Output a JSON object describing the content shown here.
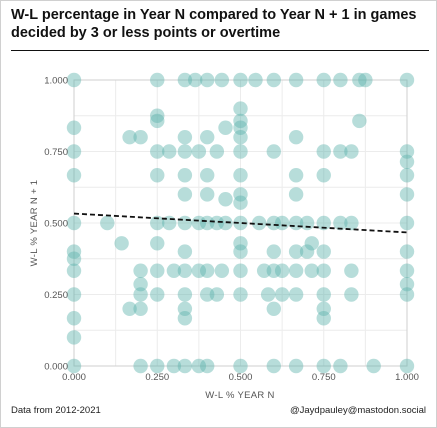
{
  "title": "W-L percentage in Year N compared to Year N + 1 in games decided by 3 or less points or overtime",
  "footer": {
    "source": "Data from 2012-2021",
    "credit": "@Jaydpauley@mastodon.social"
  },
  "chart_data": {
    "type": "scatter",
    "xlabel": "W-L % YEAR N",
    "ylabel": "W-L % YEAR N + 1",
    "xlim": [
      0,
      1
    ],
    "ylim": [
      0,
      1
    ],
    "xticks": [
      "0.000",
      "0.250",
      "0.500",
      "0.750",
      "1.000"
    ],
    "yticks": [
      "0.000",
      "0.250",
      "0.500",
      "0.750",
      "1.000"
    ],
    "grid": true,
    "point_color": "#5fb3ad",
    "trendline": {
      "x": [
        0,
        1
      ],
      "y": [
        0.533,
        0.467
      ],
      "style": "dashed",
      "color": "#111111"
    },
    "points": [
      [
        0.0,
        1.0
      ],
      [
        0.0,
        0.833
      ],
      [
        0.0,
        0.75
      ],
      [
        0.0,
        0.667
      ],
      [
        0.0,
        0.5
      ],
      [
        0.0,
        0.4
      ],
      [
        0.0,
        0.375
      ],
      [
        0.0,
        0.333
      ],
      [
        0.0,
        0.25
      ],
      [
        0.0,
        0.167
      ],
      [
        0.0,
        0.1
      ],
      [
        0.0,
        0.0
      ],
      [
        0.1,
        0.5
      ],
      [
        0.143,
        0.429
      ],
      [
        0.167,
        0.8
      ],
      [
        0.2,
        0.8
      ],
      [
        0.167,
        0.2
      ],
      [
        0.2,
        0.333
      ],
      [
        0.2,
        0.2
      ],
      [
        0.2,
        0.0
      ],
      [
        0.25,
        1.0
      ],
      [
        0.25,
        0.875
      ],
      [
        0.25,
        0.857
      ],
      [
        0.25,
        0.75
      ],
      [
        0.25,
        0.667
      ],
      [
        0.25,
        0.5
      ],
      [
        0.25,
        0.429
      ],
      [
        0.25,
        0.333
      ],
      [
        0.25,
        0.25
      ],
      [
        0.25,
        0.0
      ],
      [
        0.2,
        0.25
      ],
      [
        0.2,
        0.286
      ],
      [
        0.286,
        0.75
      ],
      [
        0.286,
        0.5
      ],
      [
        0.3,
        0.333
      ],
      [
        0.3,
        0.0
      ],
      [
        0.333,
        1.0
      ],
      [
        0.333,
        0.8
      ],
      [
        0.333,
        0.75
      ],
      [
        0.333,
        0.667
      ],
      [
        0.333,
        0.6
      ],
      [
        0.333,
        0.5
      ],
      [
        0.333,
        0.4
      ],
      [
        0.333,
        0.333
      ],
      [
        0.333,
        0.25
      ],
      [
        0.333,
        0.2
      ],
      [
        0.333,
        0.167
      ],
      [
        0.333,
        0.0
      ],
      [
        0.364,
        1.0
      ],
      [
        0.375,
        0.75
      ],
      [
        0.375,
        0.5
      ],
      [
        0.375,
        0.333
      ],
      [
        0.375,
        0.0
      ],
      [
        0.4,
        1.0
      ],
      [
        0.4,
        0.8
      ],
      [
        0.4,
        0.667
      ],
      [
        0.4,
        0.6
      ],
      [
        0.4,
        0.5
      ],
      [
        0.4,
        0.333
      ],
      [
        0.4,
        0.25
      ],
      [
        0.4,
        0.0
      ],
      [
        0.429,
        0.75
      ],
      [
        0.429,
        0.5
      ],
      [
        0.429,
        0.25
      ],
      [
        0.444,
        1.0
      ],
      [
        0.444,
        0.333
      ],
      [
        0.455,
        0.5
      ],
      [
        0.455,
        0.833
      ],
      [
        0.455,
        0.583
      ],
      [
        0.5,
        1.0
      ],
      [
        0.5,
        0.9
      ],
      [
        0.5,
        0.857
      ],
      [
        0.5,
        0.833
      ],
      [
        0.5,
        0.8
      ],
      [
        0.5,
        0.75
      ],
      [
        0.5,
        0.667
      ],
      [
        0.5,
        0.6
      ],
      [
        0.5,
        0.571
      ],
      [
        0.5,
        0.5
      ],
      [
        0.5,
        0.429
      ],
      [
        0.5,
        0.4
      ],
      [
        0.5,
        0.333
      ],
      [
        0.5,
        0.25
      ],
      [
        0.5,
        0.0
      ],
      [
        0.545,
        1.0
      ],
      [
        0.556,
        0.5
      ],
      [
        0.571,
        0.333
      ],
      [
        0.583,
        0.25
      ],
      [
        0.6,
        1.0
      ],
      [
        0.6,
        0.75
      ],
      [
        0.6,
        0.5
      ],
      [
        0.6,
        0.4
      ],
      [
        0.6,
        0.333
      ],
      [
        0.6,
        0.2
      ],
      [
        0.6,
        0.0
      ],
      [
        0.625,
        0.5
      ],
      [
        0.625,
        0.333
      ],
      [
        0.625,
        0.25
      ],
      [
        0.667,
        1.0
      ],
      [
        0.667,
        0.8
      ],
      [
        0.667,
        0.667
      ],
      [
        0.667,
        0.6
      ],
      [
        0.667,
        0.5
      ],
      [
        0.667,
        0.4
      ],
      [
        0.667,
        0.333
      ],
      [
        0.667,
        0.25
      ],
      [
        0.667,
        0.0
      ],
      [
        0.7,
        0.5
      ],
      [
        0.7,
        0.4
      ],
      [
        0.714,
        0.429
      ],
      [
        0.714,
        0.333
      ],
      [
        0.75,
        1.0
      ],
      [
        0.75,
        0.75
      ],
      [
        0.75,
        0.667
      ],
      [
        0.75,
        0.5
      ],
      [
        0.75,
        0.4
      ],
      [
        0.75,
        0.333
      ],
      [
        0.75,
        0.25
      ],
      [
        0.75,
        0.2
      ],
      [
        0.75,
        0.167
      ],
      [
        0.75,
        0.0
      ],
      [
        0.8,
        1.0
      ],
      [
        0.8,
        0.5
      ],
      [
        0.8,
        0.75
      ],
      [
        0.8,
        0.0
      ],
      [
        0.833,
        0.75
      ],
      [
        0.833,
        0.5
      ],
      [
        0.833,
        0.333
      ],
      [
        0.833,
        0.25
      ],
      [
        0.857,
        0.857
      ],
      [
        0.857,
        1.0
      ],
      [
        0.875,
        1.0
      ],
      [
        0.9,
        0.0
      ],
      [
        1.0,
        1.0
      ],
      [
        1.0,
        0.75
      ],
      [
        1.0,
        0.714
      ],
      [
        1.0,
        0.667
      ],
      [
        1.0,
        0.6
      ],
      [
        1.0,
        0.5
      ],
      [
        1.0,
        0.4
      ],
      [
        1.0,
        0.333
      ],
      [
        1.0,
        0.286
      ],
      [
        1.0,
        0.25
      ],
      [
        1.0,
        0.0
      ]
    ]
  }
}
